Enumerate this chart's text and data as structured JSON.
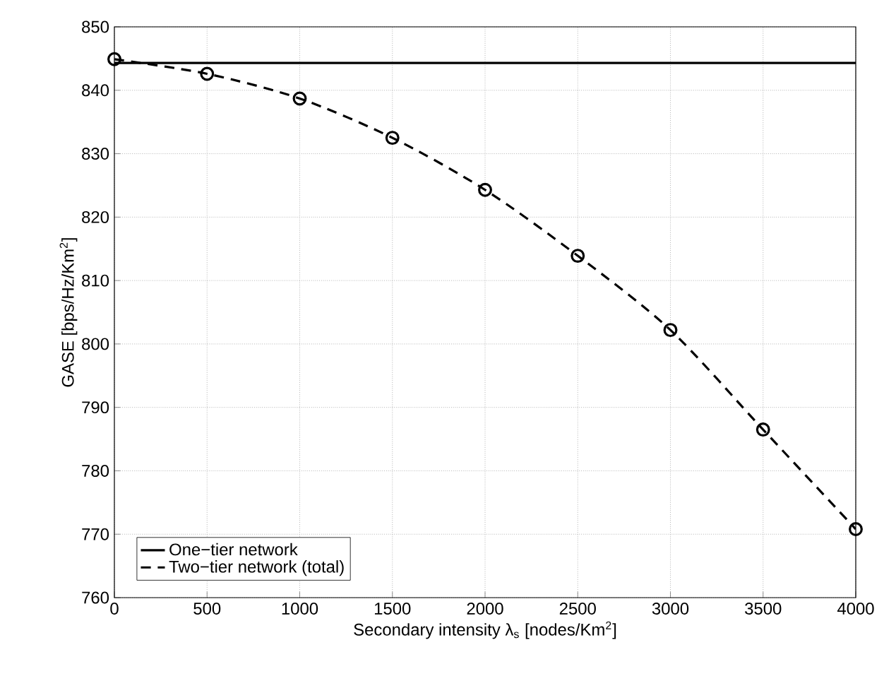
{
  "chart_data": {
    "type": "line",
    "xlabel": "Secondary intensity λ$_{s}$ [nodes/Km$^{2}$]",
    "ylabel": "GASE [bps/Hz/Km$^{2}$]",
    "x": [
      0,
      500,
      1000,
      1500,
      2000,
      2500,
      3000,
      3500,
      4000
    ],
    "series": [
      {
        "name": "One−tier network",
        "color": "#000000",
        "values": [
          844.3,
          844.3,
          844.3,
          844.3,
          844.3,
          844.3,
          844.3,
          844.3,
          844.3
        ],
        "line_style": "solid",
        "marker": "none"
      },
      {
        "name": "Two−tier network (total)",
        "color": "#000000",
        "values": [
          844.9,
          842.6,
          838.7,
          832.5,
          824.3,
          813.9,
          802.2,
          786.5,
          770.8
        ],
        "line_style": "dashed",
        "marker": "circle"
      }
    ],
    "xlim": [
      0,
      4000
    ],
    "ylim": [
      760,
      850
    ],
    "xticks": [
      0,
      500,
      1000,
      1500,
      2000,
      2500,
      3000,
      3500,
      4000
    ],
    "yticks": [
      760,
      770,
      780,
      790,
      800,
      810,
      820,
      830,
      840,
      850
    ],
    "grid": true,
    "legend": "bottom left"
  }
}
